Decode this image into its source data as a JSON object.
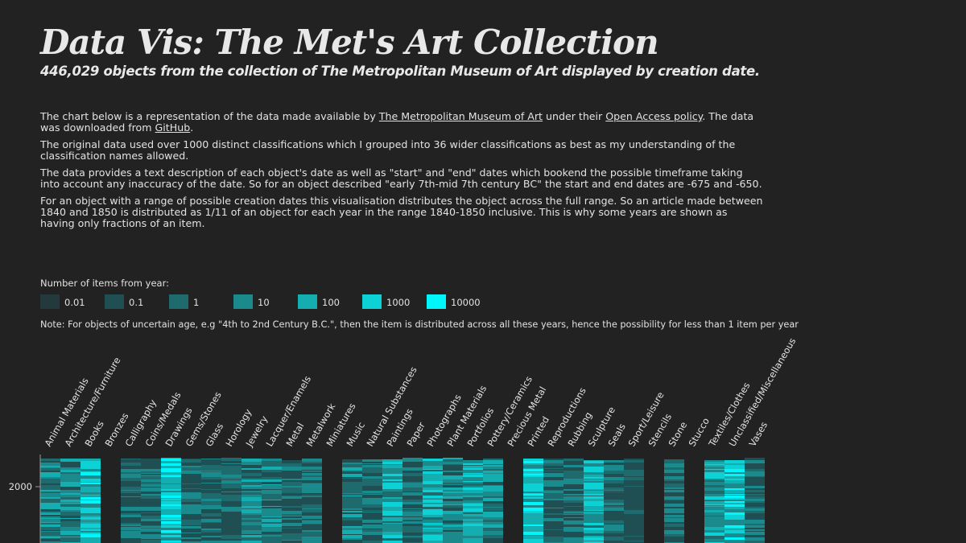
{
  "header": {
    "title": "Data Vis: The Met's Art Collection",
    "subtitle": "446,029 objects from the collection of The Metropolitan Museum of Art displayed by creation date."
  },
  "intro": {
    "p1_a": "The chart below is a representation of the data made available by ",
    "p1_link1": "The Metropolitan Museum of Art",
    "p1_b": " under their ",
    "p1_link2": "Open Access policy",
    "p1_c": ". The data was downloaded from ",
    "p1_link3": "GitHub",
    "p1_d": ".",
    "p2": "The original data used over 1000 distinct classifications which I grouped into 36 wider classifications as best as my understanding of the classification names allowed.",
    "p3": "The data provides a text description of each object's date as well as \"start\" and \"end\" dates which bookend the possible timeframe taking into account any inaccuracy of the date. So for an object described \"early 7th-mid 7th century BC\" the start and end dates are -675 and -650.",
    "p4": "For an object with a range of possible creation dates this visualisation distributes the object across the full range. So an article made between 1840 and 1850 is distributed as 1/11 of an object for each year in the range 1840-1850 inclusive. This is why some years are shown as having only fractions of an item."
  },
  "legend": {
    "title": "Number of items from year:",
    "items": [
      {
        "label": "0.01",
        "color": "#24393b"
      },
      {
        "label": "0.1",
        "color": "#1f4f52"
      },
      {
        "label": "1",
        "color": "#1e6a6d"
      },
      {
        "label": "10",
        "color": "#1a8a8c"
      },
      {
        "label": "100",
        "color": "#14aeb1"
      },
      {
        "label": "1000",
        "color": "#0cd2d6"
      },
      {
        "label": "10000",
        "color": "#00f6fb"
      }
    ]
  },
  "note": "Note: For objects of uncertain age, e.g \"4th to 2nd Century B.C.\", then the item is distributed across all these years, hence the possibility for less than 1 item per year",
  "chart_data": {
    "type": "heatmap",
    "categories": [
      "Animal Materials",
      "Architecture/Furniture",
      "Books",
      "Bronzes",
      "Calligraphy",
      "Coins/Medals",
      "Drawings",
      "Gems/Stones",
      "Glass",
      "Horology",
      "Jewelry",
      "Lacquer/Enamels",
      "Metal",
      "Metalwork",
      "Miniatures",
      "Music",
      "Natural Substances",
      "Paintings",
      "Paper",
      "Photographs",
      "Plant Materials",
      "Portfolios",
      "Pottery/Ceramics",
      "Precious Metal",
      "Printed",
      "Reproductions",
      "Rubbing",
      "Sculpture",
      "Seals",
      "Sport/Leisure",
      "Stencils",
      "Stone",
      "Stucco",
      "Textiles/Clothes",
      "Unclassified/Miscellaneous",
      "Vases"
    ],
    "y_tick_labels": [
      "2000"
    ],
    "color_scale_legend": [
      "0.01",
      "0.1",
      "1",
      "10",
      "100",
      "1000",
      "10000"
    ],
    "column_intensity": [
      3,
      3,
      5,
      0,
      2,
      2,
      5,
      2,
      2,
      2,
      3,
      3,
      2,
      2,
      0,
      3,
      2,
      4,
      2,
      4,
      3,
      4,
      3,
      0,
      5,
      2,
      2,
      4,
      2,
      1,
      0,
      2,
      0,
      4,
      5,
      2
    ]
  }
}
